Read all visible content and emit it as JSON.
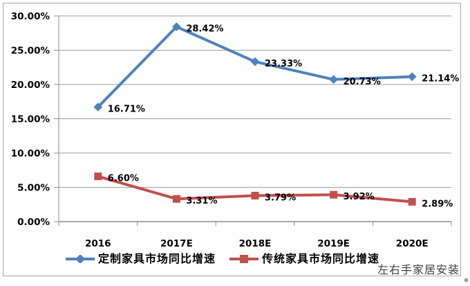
{
  "watermark": "左右手家居安装",
  "colors": {
    "series_custom_blue": "#4F81BD",
    "series_traditional_red": "#C0504D",
    "gridline": "#9b9b9b",
    "axis": "#8a8a8a",
    "text": "#000000",
    "frame_border": "#a6a6a6"
  },
  "chart_data": {
    "type": "line",
    "categories": [
      "2016",
      "2017E",
      "2018E",
      "2019E",
      "2020E"
    ],
    "series": [
      {
        "name": "定制家具市场同比增速",
        "values": [
          16.71,
          28.42,
          23.33,
          20.73,
          21.14
        ],
        "labels": [
          "16.71%",
          "28.42%",
          "23.33%",
          "20.73%",
          "21.14%"
        ],
        "color": "#4F81BD",
        "marker": "diamond"
      },
      {
        "name": "传统家具市场同比增速",
        "values": [
          6.6,
          3.31,
          3.79,
          3.92,
          2.89
        ],
        "labels": [
          "6.60%",
          "3.31%",
          "3.79%",
          "3.92%",
          "2.89%"
        ],
        "color": "#C0504D",
        "marker": "square"
      }
    ],
    "title": "",
    "xlabel": "",
    "ylabel": "",
    "ylim": [
      0,
      30
    ],
    "ytick_step": 5,
    "ytick_labels": [
      "0.00%",
      "5.00%",
      "10.00%",
      "15.00%",
      "20.00%",
      "25.00%",
      "30.00%"
    ],
    "grid": true,
    "legend_position": "bottom"
  }
}
